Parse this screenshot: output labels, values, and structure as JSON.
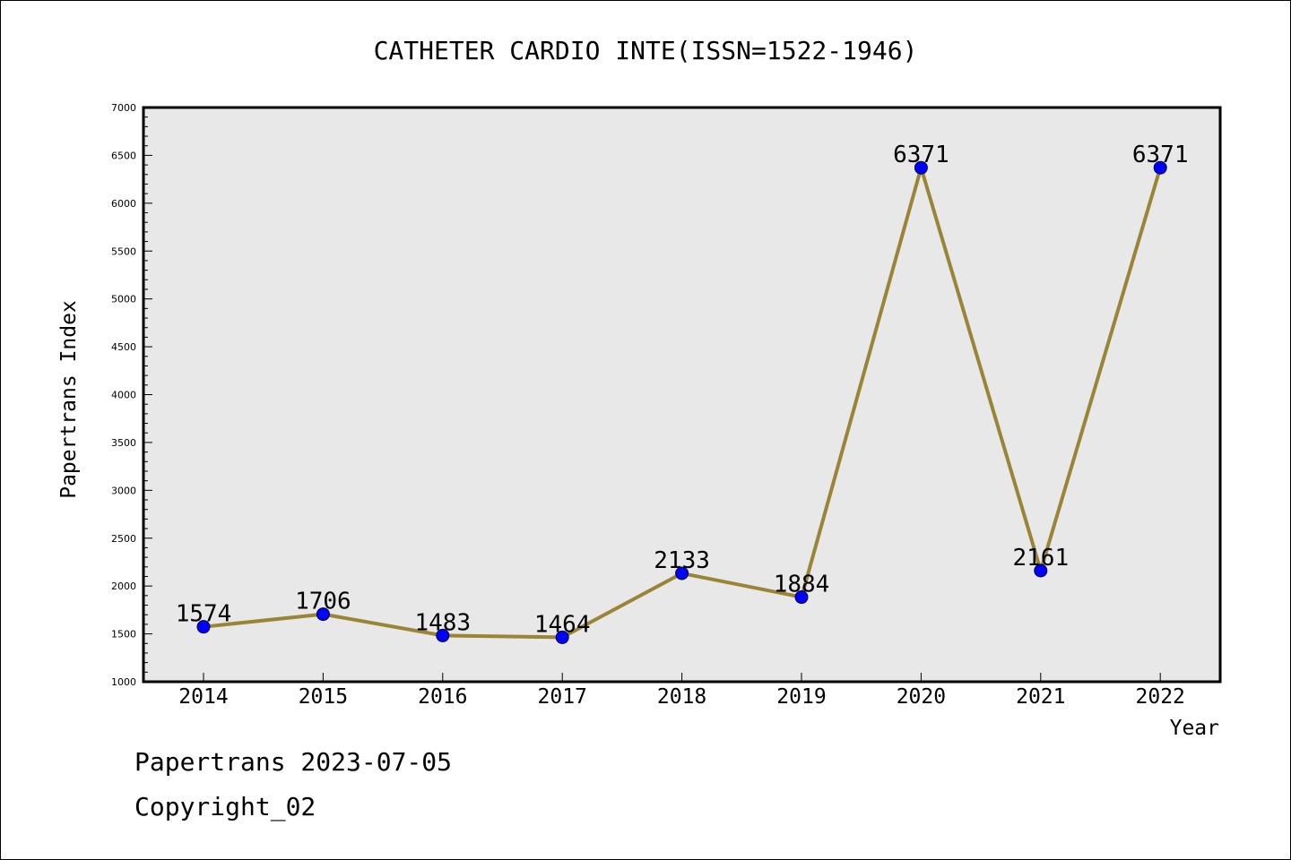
{
  "chart_data": {
    "type": "line",
    "title": "CATHETER CARDIO INTE(ISSN=1522-1946)",
    "xlabel": "Year",
    "ylabel": "Papertrans Index",
    "categories": [
      "2014",
      "2015",
      "2016",
      "2017",
      "2018",
      "2019",
      "2020",
      "2021",
      "2022"
    ],
    "series": [
      {
        "values": [
          1574,
          1706,
          1483,
          1464,
          2133,
          1884,
          6371,
          2161,
          6371
        ]
      }
    ],
    "ylim": [
      1000,
      7000
    ],
    "yticks": [
      "1000",
      "1500",
      "2000",
      "2500",
      "3000",
      "3500",
      "4000",
      "4500",
      "5000",
      "5500",
      "6000",
      "6500",
      "7000"
    ],
    "grid": false,
    "line_color": "#9a8436",
    "marker_color": "#0000ff",
    "plot_background": "#e8e8e8"
  },
  "footer": {
    "stamp": "Papertrans 2023-07-05",
    "copyright": "Copyright_02"
  }
}
